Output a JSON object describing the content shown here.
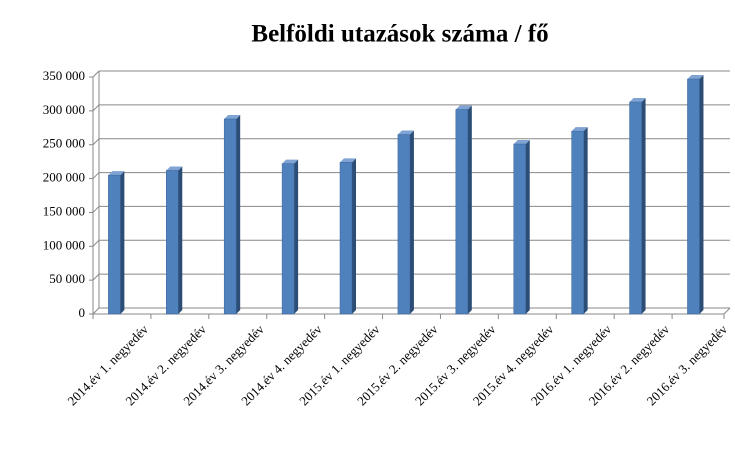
{
  "chart_data": {
    "type": "bar",
    "title": "Belföldi utazások száma / fő",
    "categories": [
      "2014.év 1. negyedév",
      "2014.év 2. negyedév",
      "2014.év 3. negyedév",
      "2014.év 4. negyedév",
      "2015.év 1. negyedév",
      "2015.év 2. negyedév",
      "2015.év 3. negyedév",
      "2015.év 4. negyedév",
      "2016.év 1. negyedév",
      "2016.év 2. negyedév",
      "2016.év 3. negyedév"
    ],
    "values": [
      205000,
      212000,
      288000,
      222000,
      224000,
      265000,
      302000,
      251000,
      270000,
      313000,
      347000
    ],
    "color": "#4f81bd",
    "ylim": [
      0,
      350000
    ],
    "yticks": [
      0,
      {
        "value": 50000,
        "label": "50 000"
      },
      {
        "value": 100000,
        "label": "100 000"
      },
      {
        "value": 150000,
        "label": "150 000"
      },
      {
        "value": 200000,
        "label": "200 000"
      },
      {
        "value": 250000,
        "label": "250 000"
      },
      {
        "value": 300000,
        "label": "300 000"
      },
      {
        "value": 350000,
        "label": "350 000"
      }
    ],
    "grid": true
  }
}
